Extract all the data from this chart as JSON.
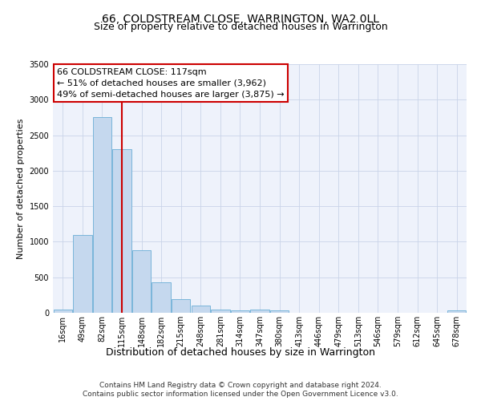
{
  "title": "66, COLDSTREAM CLOSE, WARRINGTON, WA2 0LL",
  "subtitle": "Size of property relative to detached houses in Warrington",
  "xlabel": "Distribution of detached houses by size in Warrington",
  "ylabel": "Number of detached properties",
  "bar_categories": [
    "16sqm",
    "49sqm",
    "82sqm",
    "115sqm",
    "148sqm",
    "182sqm",
    "215sqm",
    "248sqm",
    "281sqm",
    "314sqm",
    "347sqm",
    "380sqm",
    "413sqm",
    "446sqm",
    "479sqm",
    "513sqm",
    "546sqm",
    "579sqm",
    "612sqm",
    "645sqm",
    "678sqm"
  ],
  "bar_values": [
    50,
    1100,
    2750,
    2300,
    880,
    430,
    190,
    100,
    50,
    30,
    50,
    30,
    0,
    0,
    0,
    0,
    0,
    0,
    0,
    0,
    30
  ],
  "bar_color": "#c5d8ee",
  "bar_edge_color": "#6baed6",
  "vline_color": "#cc0000",
  "vline_pos": 3.0,
  "annotation_line1": "66 COLDSTREAM CLOSE: 117sqm",
  "annotation_line2": "← 51% of detached houses are smaller (3,962)",
  "annotation_line3": "49% of semi-detached houses are larger (3,875) →",
  "annotation_box_color": "#cc0000",
  "ylim": [
    0,
    3500
  ],
  "yticks": [
    0,
    500,
    1000,
    1500,
    2000,
    2500,
    3000,
    3500
  ],
  "footer_line1": "Contains HM Land Registry data © Crown copyright and database right 2024.",
  "footer_line2": "Contains public sector information licensed under the Open Government Licence v3.0.",
  "bg_color": "#eef2fb",
  "grid_color": "#c9d4e8",
  "title_fontsize": 10,
  "subtitle_fontsize": 9,
  "xlabel_fontsize": 9,
  "ylabel_fontsize": 8,
  "tick_fontsize": 7,
  "annotation_fontsize": 8,
  "footer_fontsize": 6.5
}
